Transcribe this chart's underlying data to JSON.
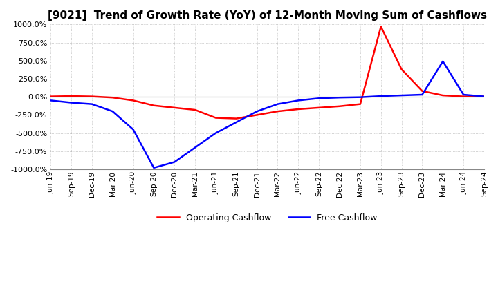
{
  "title": "[9021]  Trend of Growth Rate (YoY) of 12-Month Moving Sum of Cashflows",
  "title_fontsize": 11,
  "ylim": [
    -1000,
    1000
  ],
  "yticks": [
    -1000,
    -750,
    -500,
    -250,
    0,
    250,
    500,
    750,
    1000
  ],
  "ytick_labels": [
    "-1000.0%",
    "-750.0%",
    "-500.0%",
    "-250.0%",
    "0.0%",
    "250.0%",
    "500.0%",
    "750.0%",
    "1000.0%"
  ],
  "background_color": "#ffffff",
  "grid_color": "#aaaaaa",
  "x_labels": [
    "Jun-19",
    "Sep-19",
    "Dec-19",
    "Mar-20",
    "Jun-20",
    "Sep-20",
    "Dec-20",
    "Mar-21",
    "Jun-21",
    "Sep-21",
    "Dec-21",
    "Mar-22",
    "Jun-22",
    "Sep-22",
    "Dec-22",
    "Mar-23",
    "Jun-23",
    "Sep-23",
    "Dec-23",
    "Mar-24",
    "Jun-24",
    "Sep-24"
  ],
  "operating_cashflow": [
    5,
    10,
    5,
    -10,
    -50,
    -120,
    -150,
    -180,
    -290,
    -300,
    -250,
    -200,
    -170,
    -150,
    -130,
    -100,
    970,
    380,
    80,
    20,
    5,
    5
  ],
  "free_cashflow": [
    -50,
    -80,
    -100,
    -200,
    -450,
    -980,
    -900,
    -700,
    -500,
    -350,
    -200,
    -100,
    -50,
    -20,
    -10,
    -5,
    10,
    20,
    30,
    490,
    30,
    5
  ],
  "op_color": "#ff0000",
  "fc_color": "#0000ff",
  "legend_labels": [
    "Operating Cashflow",
    "Free Cashflow"
  ]
}
